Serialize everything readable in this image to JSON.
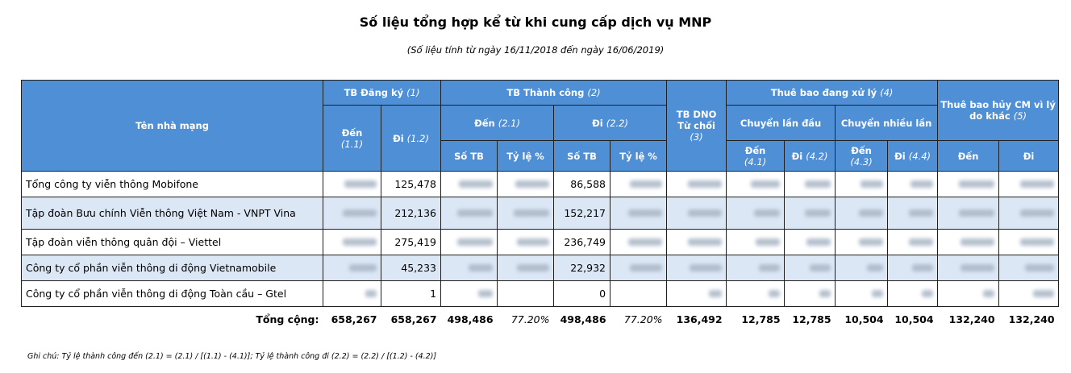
{
  "title": "Số liệu tổng hợp kể từ khi cung cấp dịch vụ MNP",
  "subtitle": "(Số liệu tính từ ngày 16/11/2018 đến ngày 16/06/2019)",
  "header": {
    "col_name": "Tên nhà mạng",
    "reg": "TB Đăng ký",
    "reg_ref": "(1)",
    "reg_in": "Đến",
    "reg_in_ref": "(1.1)",
    "reg_out": "Đi",
    "reg_out_ref": "(1.2)",
    "success": "TB Thành công",
    "success_ref": "(2)",
    "succ_in": "Đến",
    "succ_in_ref": "(2.1)",
    "succ_out": "Đi",
    "succ_out_ref": "(2.2)",
    "so_tb": "Số TB",
    "ty_le": "Tỷ lệ %",
    "dno": "TB DNO Từ chối",
    "dno_ref": "(3)",
    "processing": "Thuê bao đang xử lý",
    "processing_ref": "(4)",
    "first": "Chuyển lần đầu",
    "multi": "Chuyển nhiều lần",
    "p_in": "Đến",
    "p_out": "Đi",
    "ref41": "(4.1)",
    "ref42": "(4.2)",
    "ref43": "(4.3)",
    "ref44": "(4.4)",
    "cancel": "Thuê bao hủy CM vì lý do khác",
    "cancel_ref": "(5)",
    "c_in": "Đến",
    "c_out": "Đi"
  },
  "rows": [
    {
      "name": "Tổng công ty viễn thông Mobifone",
      "reg_out": "125,478",
      "succ_out": "86,588"
    },
    {
      "name": "Tập đoàn Bưu chính Viễn thông Việt Nam - VNPT Vina",
      "reg_out": "212,136",
      "succ_out": "152,217"
    },
    {
      "name": "Tập đoàn viễn thông quân đội – Viettel",
      "reg_out": "275,419",
      "succ_out": "236,749"
    },
    {
      "name": "Công ty cổ phần viễn thông di động Vietnamobile",
      "reg_out": "45,233",
      "succ_out": "22,932"
    },
    {
      "name": "Công ty cổ phần viễn thông di động Toàn cầu – Gtel",
      "reg_out": "1",
      "succ_out": "0"
    }
  ],
  "total": {
    "label": "Tổng cộng:",
    "values": [
      "658,267",
      "658,267",
      "498,486",
      "77.20%",
      "498,486",
      "77.20%",
      "136,492",
      "12,785",
      "12,785",
      "10,504",
      "10,504",
      "132,240",
      "132,240"
    ]
  },
  "note": "Ghi chú: Tỷ lệ thành công đến (2.1) = (2.1) / [(1.1) - (4.1)]; Tỷ lệ thành công đi (2.2) = (2.2) / [(1.2) - (4.2)]"
}
